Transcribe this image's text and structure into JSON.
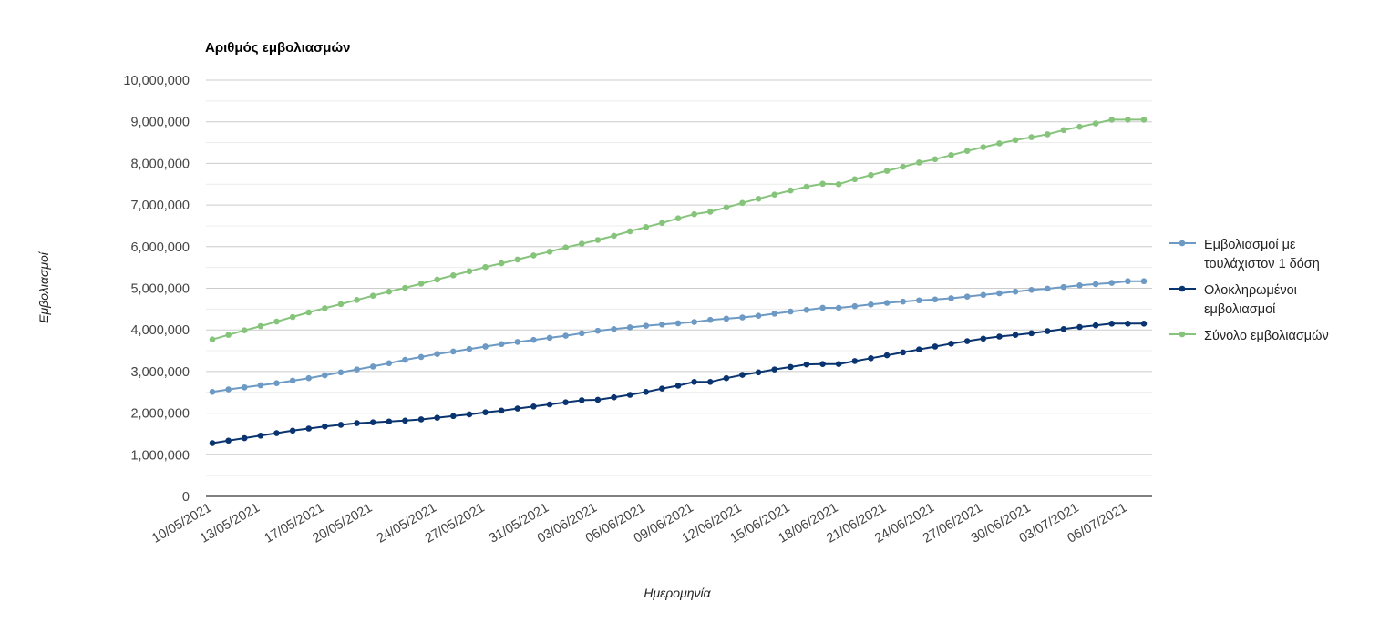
{
  "chart_data": {
    "type": "line",
    "title": "Αριθμός εμβολιασμών",
    "xlabel": "Ημερομηνία",
    "ylabel": "Εμβολιασμοί",
    "ylim": [
      0,
      10000000
    ],
    "yticks": [
      0,
      1000000,
      2000000,
      3000000,
      4000000,
      5000000,
      6000000,
      7000000,
      8000000,
      9000000,
      10000000
    ],
    "ytick_labels": [
      "0",
      "1,000,000",
      "2,000,000",
      "3,000,000",
      "4,000,000",
      "5,000,000",
      "6,000,000",
      "7,000,000",
      "8,000,000",
      "9,000,000",
      "10,000,000"
    ],
    "grid": true,
    "legend_position": "right",
    "x": [
      "10/05/2021",
      "11/05/2021",
      "12/05/2021",
      "13/05/2021",
      "14/05/2021",
      "15/05/2021",
      "16/05/2021",
      "17/05/2021",
      "18/05/2021",
      "19/05/2021",
      "20/05/2021",
      "21/05/2021",
      "22/05/2021",
      "23/05/2021",
      "24/05/2021",
      "25/05/2021",
      "26/05/2021",
      "27/05/2021",
      "28/05/2021",
      "29/05/2021",
      "30/05/2021",
      "31/05/2021",
      "01/06/2021",
      "02/06/2021",
      "03/06/2021",
      "04/06/2021",
      "05/06/2021",
      "06/06/2021",
      "07/06/2021",
      "08/06/2021",
      "09/06/2021",
      "10/06/2021",
      "11/06/2021",
      "12/06/2021",
      "13/06/2021",
      "14/06/2021",
      "15/06/2021",
      "16/06/2021",
      "17/06/2021",
      "18/06/2021",
      "19/06/2021",
      "20/06/2021",
      "21/06/2021",
      "22/06/2021",
      "23/06/2021",
      "24/06/2021",
      "25/06/2021",
      "26/06/2021",
      "27/06/2021",
      "28/06/2021",
      "29/06/2021",
      "30/06/2021",
      "01/07/2021",
      "02/07/2021",
      "03/07/2021",
      "04/07/2021",
      "05/07/2021",
      "06/07/2021",
      "07/07/2021"
    ],
    "x_tick_labels": [
      "10/05/2021",
      "13/05/2021",
      "17/05/2021",
      "20/05/2021",
      "24/05/2021",
      "27/05/2021",
      "31/05/2021",
      "03/06/2021",
      "06/06/2021",
      "09/06/2021",
      "12/06/2021",
      "15/06/2021",
      "18/06/2021",
      "21/06/2021",
      "24/06/2021",
      "27/06/2021",
      "30/06/2021",
      "03/07/2021",
      "06/07/2021"
    ],
    "series": [
      {
        "name": "Εμβολιασμοί με τουλάχιστον 1 δόση",
        "color": "#6d9ac4",
        "values": [
          2510000,
          2570000,
          2620000,
          2670000,
          2720000,
          2780000,
          2840000,
          2910000,
          2980000,
          3050000,
          3120000,
          3200000,
          3280000,
          3350000,
          3420000,
          3480000,
          3540000,
          3600000,
          3660000,
          3710000,
          3760000,
          3810000,
          3860000,
          3920000,
          3980000,
          4020000,
          4060000,
          4100000,
          4130000,
          4160000,
          4190000,
          4240000,
          4270000,
          4300000,
          4340000,
          4390000,
          4440000,
          4480000,
          4530000,
          4530000,
          4570000,
          4610000,
          4650000,
          4680000,
          4710000,
          4730000,
          4760000,
          4800000,
          4840000,
          4880000,
          4920000,
          4960000,
          4990000,
          5030000,
          5070000,
          5100000,
          5130000,
          5170000,
          5170000
        ]
      },
      {
        "name": "Ολοκληρωμένοι εμβολιασμοί",
        "color": "#0a3470",
        "values": [
          1280000,
          1340000,
          1400000,
          1460000,
          1520000,
          1580000,
          1630000,
          1680000,
          1720000,
          1760000,
          1780000,
          1800000,
          1820000,
          1850000,
          1890000,
          1930000,
          1970000,
          2020000,
          2060000,
          2110000,
          2160000,
          2210000,
          2260000,
          2310000,
          2320000,
          2380000,
          2440000,
          2510000,
          2590000,
          2660000,
          2750000,
          2750000,
          2840000,
          2920000,
          2980000,
          3050000,
          3110000,
          3170000,
          3180000,
          3180000,
          3250000,
          3320000,
          3390000,
          3460000,
          3530000,
          3600000,
          3670000,
          3730000,
          3790000,
          3840000,
          3880000,
          3920000,
          3970000,
          4020000,
          4070000,
          4110000,
          4150000,
          4150000,
          4150000
        ]
      },
      {
        "name": "Σύνολο εμβολιασμών",
        "color": "#86c47c",
        "values": [
          3770000,
          3880000,
          3990000,
          4090000,
          4200000,
          4310000,
          4420000,
          4520000,
          4620000,
          4720000,
          4820000,
          4920000,
          5010000,
          5110000,
          5210000,
          5310000,
          5410000,
          5510000,
          5600000,
          5690000,
          5790000,
          5880000,
          5980000,
          6070000,
          6160000,
          6260000,
          6370000,
          6470000,
          6570000,
          6680000,
          6780000,
          6840000,
          6940000,
          7050000,
          7150000,
          7250000,
          7350000,
          7440000,
          7510000,
          7500000,
          7620000,
          7720000,
          7820000,
          7920000,
          8020000,
          8100000,
          8200000,
          8300000,
          8390000,
          8480000,
          8560000,
          8630000,
          8700000,
          8800000,
          8880000,
          8960000,
          9050000,
          9050000,
          9050000
        ]
      }
    ]
  }
}
